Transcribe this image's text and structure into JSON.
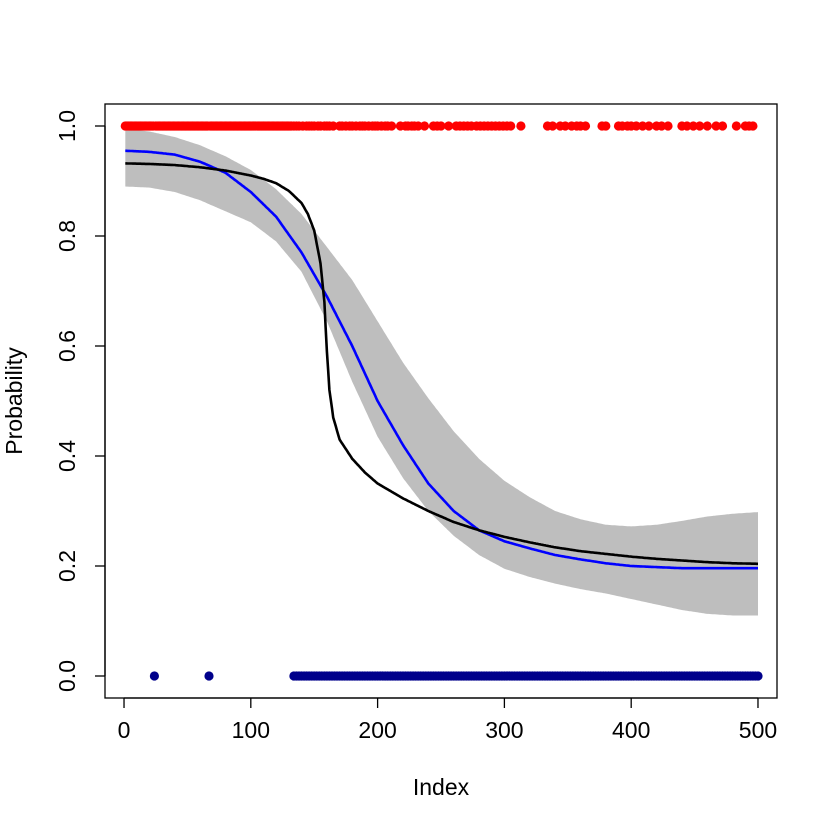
{
  "chart_data": {
    "type": "scatter",
    "xlabel": "Index",
    "ylabel": "Probability",
    "xlim": [
      -15,
      515
    ],
    "ylim": [
      -0.04,
      1.04
    ],
    "x_ticks": [
      "0",
      "100",
      "200",
      "300",
      "400",
      "500"
    ],
    "y_ticks": [
      "0.0",
      "0.2",
      "0.4",
      "0.6",
      "0.8",
      "1.0"
    ],
    "grid": false,
    "legend": "none",
    "colors": {
      "points_one": "#ff0000",
      "points_zero": "#00008b",
      "band": "#bebebe",
      "line_blue": "#0000ff",
      "line_black": "#000000"
    },
    "points_y1": [
      1,
      2,
      3,
      4,
      5,
      6,
      7,
      8,
      9,
      10,
      11,
      12,
      13,
      14,
      15,
      16,
      17,
      18,
      19,
      20,
      21,
      22,
      23,
      25,
      26,
      27,
      28,
      29,
      30,
      31,
      32,
      33,
      34,
      35,
      36,
      37,
      38,
      39,
      40,
      41,
      42,
      43,
      44,
      45,
      46,
      47,
      48,
      49,
      50,
      51,
      52,
      53,
      54,
      55,
      56,
      57,
      58,
      59,
      60,
      61,
      62,
      63,
      64,
      65,
      66,
      68,
      69,
      70,
      71,
      72,
      73,
      74,
      75,
      76,
      77,
      78,
      79,
      80,
      81,
      82,
      83,
      84,
      85,
      86,
      87,
      88,
      89,
      90,
      91,
      92,
      93,
      94,
      95,
      96,
      97,
      98,
      99,
      100,
      101,
      102,
      103,
      104,
      105,
      106,
      107,
      108,
      109,
      110,
      111,
      112,
      113,
      114,
      115,
      116,
      117,
      118,
      119,
      120,
      121,
      122,
      123,
      124,
      125,
      126,
      127,
      128,
      129,
      130,
      131,
      132,
      134,
      136,
      138,
      141,
      144,
      146,
      148,
      150,
      153,
      155,
      158,
      160,
      162,
      165,
      170,
      172,
      175,
      178,
      180,
      183,
      186,
      188,
      190,
      193,
      196,
      198,
      200,
      203,
      206,
      208,
      211,
      218,
      222,
      224,
      227,
      229,
      232,
      237,
      244,
      247,
      250,
      256,
      262,
      265,
      268,
      271,
      274,
      278,
      281,
      284,
      287,
      290,
      293,
      296,
      299,
      302,
      305,
      313,
      334,
      338,
      344,
      348,
      353,
      357,
      360,
      364,
      377,
      380,
      390,
      393,
      397,
      400,
      404,
      409,
      414,
      420,
      424,
      429,
      440,
      444,
      449,
      454,
      460,
      467,
      472,
      483,
      490,
      493,
      496
    ],
    "points_y0": [
      24,
      67,
      134,
      136,
      138,
      140,
      142,
      144,
      146,
      148,
      150,
      152,
      154,
      156,
      158,
      160,
      162,
      164,
      166,
      168,
      170,
      172,
      174,
      176,
      178,
      180,
      182,
      184,
      186,
      188,
      190,
      192,
      194,
      196,
      198,
      200,
      202,
      204,
      206,
      208,
      210,
      212,
      214,
      216,
      218,
      220,
      222,
      224,
      226,
      228,
      230,
      232,
      234,
      236,
      238,
      240,
      242,
      244,
      246,
      248,
      250,
      252,
      254,
      256,
      258,
      260,
      262,
      264,
      266,
      268,
      270,
      272,
      274,
      276,
      278,
      280,
      282,
      284,
      286,
      288,
      290,
      292,
      294,
      296,
      298,
      300,
      302,
      304,
      306,
      308,
      310,
      312,
      314,
      316,
      318,
      320,
      322,
      324,
      326,
      328,
      330,
      332,
      334,
      336,
      338,
      340,
      342,
      344,
      346,
      348,
      350,
      352,
      354,
      356,
      358,
      360,
      362,
      364,
      366,
      368,
      370,
      372,
      374,
      376,
      378,
      380,
      382,
      384,
      386,
      388,
      390,
      392,
      394,
      396,
      398,
      400,
      402,
      404,
      406,
      408,
      410,
      412,
      414,
      416,
      418,
      420,
      422,
      424,
      426,
      428,
      430,
      432,
      434,
      436,
      438,
      440,
      442,
      444,
      446,
      448,
      450,
      452,
      454,
      456,
      458,
      460,
      462,
      464,
      466,
      468,
      470,
      472,
      474,
      476,
      478,
      480,
      482,
      484,
      486,
      488,
      490,
      492,
      494,
      496,
      498,
      500
    ],
    "band_x": [
      1,
      20,
      40,
      60,
      80,
      100,
      120,
      140,
      160,
      180,
      200,
      220,
      240,
      260,
      280,
      300,
      320,
      340,
      360,
      380,
      400,
      420,
      440,
      460,
      480,
      500
    ],
    "band_upper": [
      0.995,
      0.99,
      0.98,
      0.965,
      0.945,
      0.92,
      0.885,
      0.84,
      0.78,
      0.72,
      0.645,
      0.57,
      0.505,
      0.445,
      0.395,
      0.355,
      0.325,
      0.3,
      0.285,
      0.275,
      0.272,
      0.275,
      0.282,
      0.29,
      0.295,
      0.298
    ],
    "band_lower": [
      0.89,
      0.888,
      0.88,
      0.865,
      0.845,
      0.825,
      0.79,
      0.735,
      0.645,
      0.535,
      0.435,
      0.36,
      0.3,
      0.255,
      0.22,
      0.195,
      0.18,
      0.168,
      0.158,
      0.15,
      0.14,
      0.13,
      0.12,
      0.113,
      0.11,
      0.11
    ],
    "series": [
      {
        "x": [
          1,
          20,
          40,
          60,
          80,
          100,
          120,
          140,
          160,
          180,
          200,
          220,
          240,
          260,
          280,
          300,
          320,
          340,
          360,
          380,
          400,
          420,
          440,
          460,
          480,
          500
        ],
        "y": [
          0.955,
          0.953,
          0.948,
          0.935,
          0.915,
          0.88,
          0.835,
          0.77,
          0.69,
          0.6,
          0.5,
          0.42,
          0.35,
          0.3,
          0.265,
          0.245,
          0.232,
          0.22,
          0.212,
          0.205,
          0.2,
          0.198,
          0.196,
          0.196,
          0.196,
          0.196
        ],
        "color": "#0000ff"
      },
      {
        "x": [
          1,
          20,
          40,
          60,
          80,
          100,
          110,
          120,
          130,
          140,
          145,
          150,
          155,
          158,
          160,
          162,
          165,
          170,
          180,
          190,
          200,
          220,
          240,
          260,
          280,
          300,
          320,
          340,
          360,
          380,
          400,
          420,
          440,
          460,
          480,
          500
        ],
        "y": [
          0.932,
          0.931,
          0.929,
          0.925,
          0.919,
          0.91,
          0.904,
          0.896,
          0.882,
          0.86,
          0.84,
          0.81,
          0.75,
          0.68,
          0.59,
          0.52,
          0.47,
          0.43,
          0.395,
          0.37,
          0.35,
          0.323,
          0.3,
          0.28,
          0.265,
          0.253,
          0.243,
          0.234,
          0.227,
          0.222,
          0.217,
          0.213,
          0.21,
          0.207,
          0.205,
          0.204
        ],
        "color": "#000000"
      }
    ]
  }
}
